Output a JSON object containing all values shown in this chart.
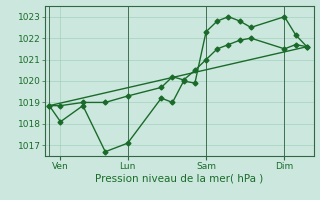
{
  "xlabel": "Pression niveau de la mer( hPa )",
  "bg_color": "#cce8de",
  "grid_color": "#99ccb8",
  "line_color": "#1a6b2a",
  "axis_color": "#336644",
  "ylim": [
    1016.5,
    1023.5
  ],
  "yticks": [
    1017,
    1018,
    1019,
    1020,
    1021,
    1022,
    1023
  ],
  "xlim": [
    -0.2,
    11.8
  ],
  "x_tick_labels": [
    "Ven",
    "Lun",
    "Sam",
    "Dim"
  ],
  "x_tick_positions": [
    0.5,
    3.5,
    7.0,
    10.5
  ],
  "x_vline_positions": [
    0.0,
    3.5,
    7.0,
    10.5
  ],
  "series1_x": [
    0.0,
    0.5,
    1.5,
    2.5,
    3.5,
    5.0,
    5.5,
    6.0,
    6.5,
    7.0,
    7.5,
    8.0,
    8.5,
    9.0,
    10.5,
    11.0,
    11.5
  ],
  "series1_y": [
    1018.85,
    1018.1,
    1018.85,
    1016.7,
    1017.1,
    1019.2,
    1019.0,
    1020.0,
    1019.9,
    1022.3,
    1022.8,
    1023.0,
    1022.8,
    1022.5,
    1023.0,
    1022.15,
    1021.6
  ],
  "series2_x": [
    0.0,
    0.5,
    1.5,
    2.5,
    3.5,
    5.0,
    5.5,
    6.0,
    6.5,
    7.0,
    7.5,
    8.0,
    8.5,
    9.0,
    10.5,
    11.0,
    11.5
  ],
  "series2_y": [
    1018.85,
    1018.85,
    1019.0,
    1019.0,
    1019.3,
    1019.7,
    1020.2,
    1020.05,
    1020.5,
    1021.0,
    1021.5,
    1021.7,
    1021.9,
    1022.0,
    1021.5,
    1021.7,
    1021.6
  ],
  "trend_x": [
    0.0,
    11.5
  ],
  "trend_y": [
    1018.85,
    1021.6
  ],
  "marker_size": 2.5,
  "line_width": 1.0,
  "font_color": "#1a6b2a",
  "font_size_ticks": 6.5,
  "font_size_xlabel": 7.5
}
